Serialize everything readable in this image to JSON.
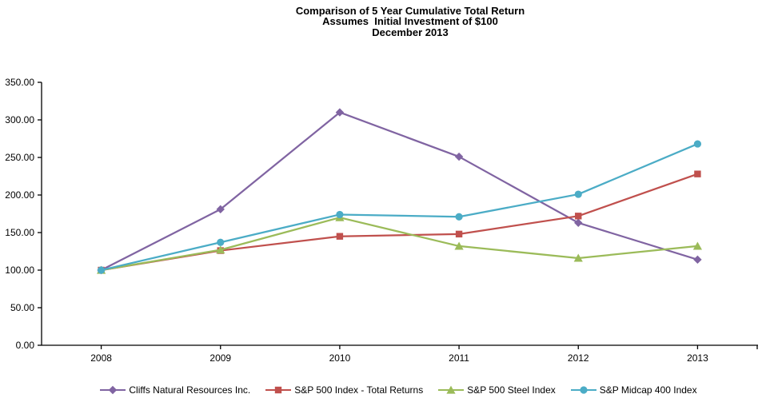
{
  "page": {
    "background": "#ffffff",
    "text_color": "#000000"
  },
  "chart_data": {
    "type": "line",
    "title": "Comparison of 5 Year Cumulative Total Return",
    "subtitle1": "Assumes  Initial Investment of $100",
    "subtitle2": "December 2013",
    "categories": [
      "2008",
      "2009",
      "2010",
      "2011",
      "2012",
      "2013"
    ],
    "series": [
      {
        "name": "Cliffs Natural Resources Inc.",
        "marker": "diamond",
        "color": "#8064A2",
        "values": [
          100,
          181,
          310,
          251,
          163,
          114
        ]
      },
      {
        "name": "S&P 500 Index - Total Returns",
        "marker": "square",
        "color": "#C0504D",
        "values": [
          100,
          126,
          145,
          148,
          172,
          228
        ]
      },
      {
        "name": "S&P 500 Steel Index",
        "marker": "triangle",
        "color": "#9BBB59",
        "values": [
          100,
          127,
          170,
          132,
          116,
          132
        ]
      },
      {
        "name": "S&P Midcap 400 Index",
        "marker": "circle",
        "color": "#4BACC6",
        "values": [
          100,
          137,
          174,
          171,
          201,
          268
        ]
      }
    ],
    "xlabel": "",
    "ylabel": "",
    "ylim": [
      0,
      350
    ],
    "y_tick_step": 50,
    "y_tick_decimals": 2,
    "grid": false,
    "legend_position": "bottom",
    "axis_color": "#000000"
  }
}
